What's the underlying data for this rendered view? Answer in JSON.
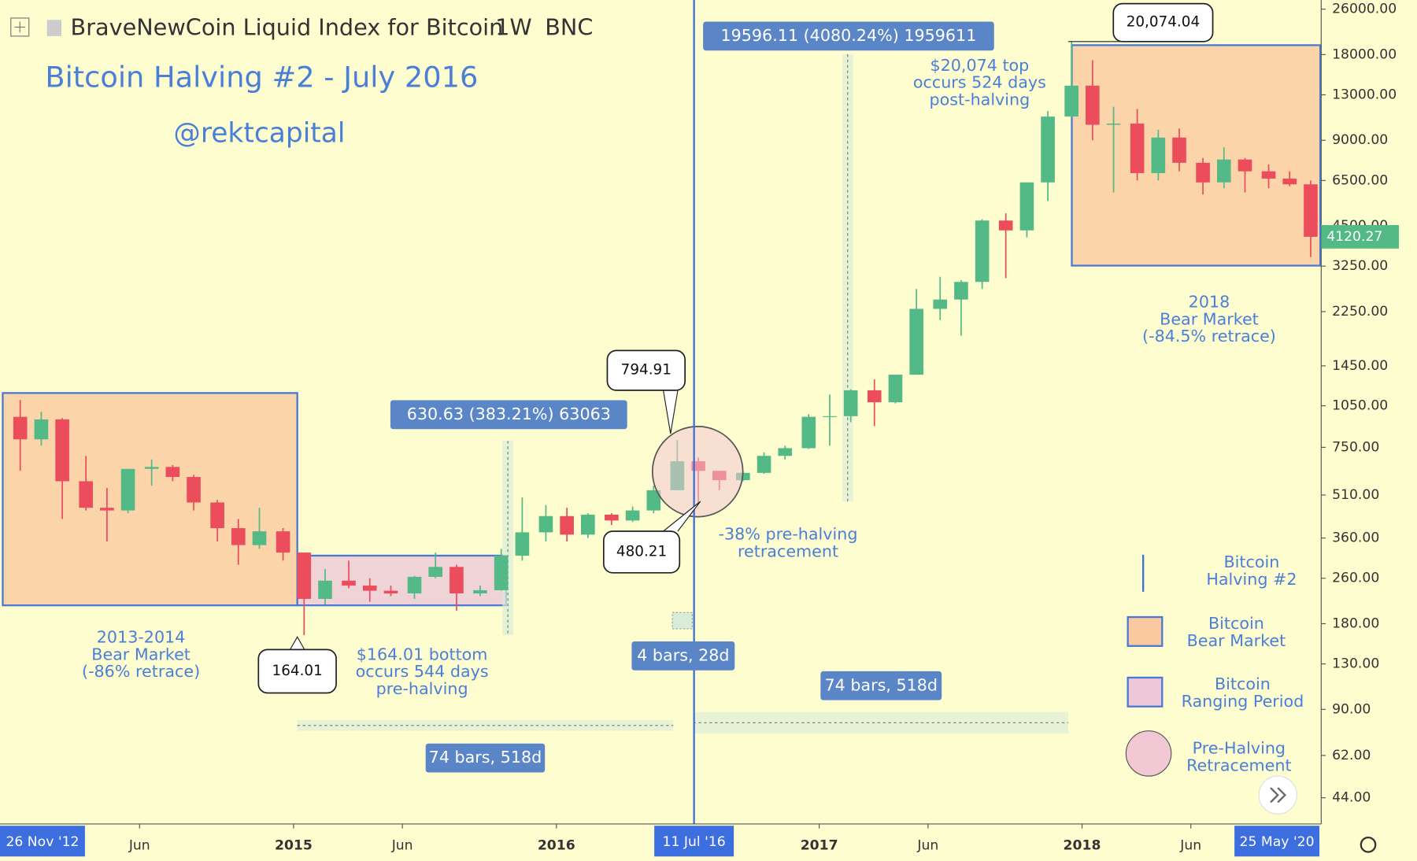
{
  "header": {
    "symbol": "BraveNewCoin Liquid Index for Bitcoin",
    "interval": "1W",
    "exchange": "BNC"
  },
  "chart_data": {
    "type": "candlestick",
    "title": "Bitcoin Halving #2 - July 2016",
    "subtitle": "@rektcapital",
    "log_scale": true,
    "grid": false,
    "up_color": "#53b987",
    "down_color": "#eb4d5c",
    "xlim": [
      2013.883,
      2018.91
    ],
    "ylim": [
      35.6,
      28000
    ],
    "xticks": [
      {
        "value": 2014.414,
        "label": "Jun"
      },
      2015,
      {
        "value": 2015.414,
        "label": "Jun"
      },
      2016,
      2017,
      {
        "value": 2017.414,
        "label": "Jun"
      },
      2018,
      {
        "value": 2018.414,
        "label": "Jun"
      }
    ],
    "yticks": [
      {
        "value": 44,
        "label": "44.00"
      },
      {
        "value": 62,
        "label": "62.00"
      },
      {
        "value": 90,
        "label": "90.00"
      },
      {
        "value": 130,
        "label": "130.00"
      },
      {
        "value": 180,
        "label": "180.00"
      },
      {
        "value": 260,
        "label": "260.00"
      },
      {
        "value": 360,
        "label": "360.00"
      },
      {
        "value": 510,
        "label": "510.00"
      },
      {
        "value": 750,
        "label": "750.00"
      },
      {
        "value": 1050,
        "label": "1050.00"
      },
      {
        "value": 1450,
        "label": "1450.00"
      },
      {
        "value": 2250,
        "label": "2250.00"
      },
      {
        "value": 3250,
        "label": "3250.00"
      },
      {
        "value": 4500,
        "label": "4500.00"
      },
      {
        "value": 6500,
        "label": "6500.00"
      },
      {
        "value": 9000,
        "label": "9000.00"
      },
      {
        "value": 13000,
        "label": "13000.00"
      },
      {
        "value": 18000,
        "label": "18000.00"
      },
      {
        "value": 26000,
        "label": "26000.00"
      }
    ],
    "x": [
      2013.92,
      2014.0,
      2014.08,
      2014.17,
      2014.25,
      2014.33,
      2014.42,
      2014.5,
      2014.58,
      2014.67,
      2014.75,
      2014.83,
      2014.92,
      2015.0,
      2015.08,
      2015.17,
      2015.25,
      2015.33,
      2015.42,
      2015.5,
      2015.58,
      2015.67,
      2015.75,
      2015.83,
      2015.92,
      2016.0,
      2016.08,
      2016.17,
      2016.25,
      2016.33,
      2016.42,
      2016.5,
      2016.58,
      2016.67,
      2016.75,
      2016.83,
      2016.92,
      2017.0,
      2017.08,
      2017.17,
      2017.25,
      2017.33,
      2017.42,
      2017.5,
      2017.58,
      2017.67,
      2017.75,
      2017.83,
      2017.92,
      2018.0,
      2018.08,
      2018.17,
      2018.25,
      2018.33,
      2018.42,
      2018.5,
      2018.58,
      2018.67,
      2018.75,
      2018.83
    ],
    "open": [
      960,
      800,
      940,
      570,
      460,
      450,
      630,
      640,
      590,
      480,
      390,
      340,
      380,
      320,
      220,
      255,
      245,
      235,
      230,
      263,
      285,
      230,
      236,
      312,
      377,
      430,
      370,
      435,
      415,
      450,
      530,
      670,
      620,
      575,
      610,
      700,
      745,
      960,
      965,
      1190,
      1080,
      1350,
      2300,
      2480,
      2860,
      4700,
      4340,
      6400,
      10900,
      14000,
      10200,
      10300,
      6900,
      9200,
      7500,
      6400,
      7700,
      7000,
      6600,
      6300
    ],
    "high": [
      1100,
      1000,
      950,
      700,
      540,
      630,
      680,
      650,
      600,
      490,
      420,
      460,
      390,
      320,
      280,
      300,
      260,
      245,
      265,
      320,
      290,
      245,
      330,
      500,
      470,
      460,
      440,
      440,
      465,
      550,
      794.91,
      690,
      620,
      620,
      720,
      760,
      980,
      1150,
      1200,
      1300,
      1350,
      2700,
      2980,
      2900,
      4750,
      4980,
      6400,
      11400,
      20074.04,
      17200,
      11800,
      11600,
      9800,
      9900,
      7800,
      8500,
      7800,
      7400,
      7000,
      6500
    ],
    "low": [
      620,
      760,
      420,
      450,
      350,
      440,
      550,
      570,
      450,
      350,
      290,
      330,
      300,
      164.01,
      210,
      240,
      215,
      225,
      220,
      260,
      200,
      225,
      235,
      300,
      350,
      350,
      360,
      400,
      410,
      440,
      530,
      480.21,
      530,
      570,
      605,
      680,
      740,
      760,
      920,
      890,
      1070,
      1350,
      2100,
      1850,
      2700,
      2950,
      4100,
      5500,
      10800,
      9000,
      5900,
      6500,
      6500,
      7000,
      5800,
      6100,
      5900,
      6100,
      6200,
      3500
    ],
    "close": [
      800,
      940,
      570,
      460,
      450,
      630,
      640,
      590,
      480,
      390,
      340,
      380,
      320,
      220,
      255,
      245,
      235,
      230,
      263,
      285,
      230,
      236,
      312,
      377,
      430,
      370,
      435,
      415,
      450,
      530,
      670,
      620,
      575,
      610,
      700,
      745,
      960,
      965,
      1190,
      1080,
      1350,
      2300,
      2480,
      2860,
      4700,
      4340,
      6400,
      10900,
      14000,
      10200,
      10300,
      6900,
      9200,
      7500,
      6400,
      7700,
      7000,
      6600,
      6300,
      4120.27
    ],
    "range_labels": [
      "26 Nov '12",
      "11 Jul '16",
      "25 May '20"
    ],
    "measures": [
      "630.63 (383.21%) 63063",
      "19596.11 (4080.24%) 1959611",
      "4 bars, 28d",
      "74 bars, 518d",
      "74 bars, 518d"
    ],
    "callouts": [
      "20,074.04",
      "794.91",
      "480.21",
      "164.01"
    ],
    "notes": [
      {
        "lines": [
          "2013-2014",
          "Bear Market",
          "(-86% retrace)"
        ]
      },
      {
        "lines": [
          "$164.01 bottom",
          "occurs 544 days",
          "pre-halving"
        ]
      },
      {
        "lines": [
          "-38% pre-halving",
          "retracement"
        ]
      },
      {
        "lines": [
          "$20,074 top",
          "occurs 524 days",
          "post-halving"
        ]
      },
      {
        "lines": [
          "2018",
          "Bear Market",
          "(-84.5% retrace)"
        ]
      }
    ],
    "legend": [
      {
        "lines": [
          "Bitcoin",
          "Halving #2"
        ]
      },
      {
        "lines": [
          "Bitcoin",
          "Bear Market"
        ]
      },
      {
        "lines": [
          "Bitcoin",
          "Ranging Period"
        ]
      },
      {
        "lines": [
          "Pre-Halving",
          "Retracement"
        ]
      }
    ]
  }
}
